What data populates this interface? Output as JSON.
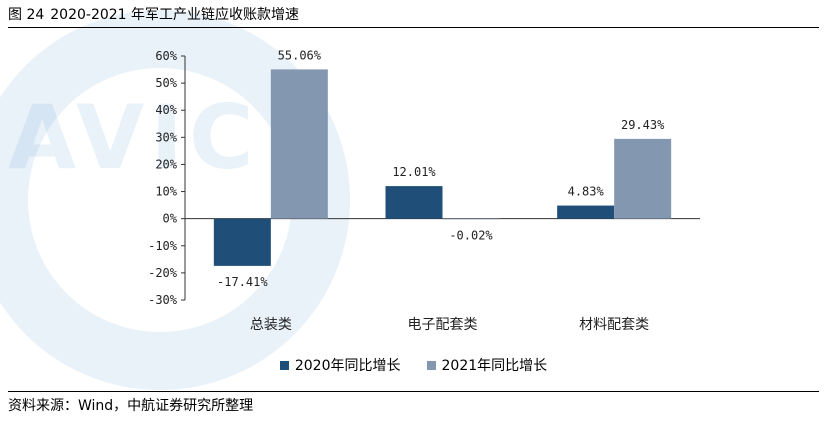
{
  "header": {
    "figure_no": "图 24",
    "title": "2020-2021 年军工产业链应收账款增速"
  },
  "watermark": {
    "text": "AVIC"
  },
  "source": {
    "text": "资料来源：Wind，中航证券研究所整理"
  },
  "colors": {
    "series_2020": "#1f4e79",
    "series_2021": "#8497b0",
    "watermark": "#78aad7"
  },
  "chart_data": {
    "type": "bar",
    "categories": [
      "总装类",
      "电子配套类",
      "材料配套类"
    ],
    "series": [
      {
        "name": "2020年同比增长",
        "values": [
          -17.41,
          12.01,
          4.83
        ],
        "labels": [
          "-17.41%",
          "12.01%",
          "4.83%"
        ]
      },
      {
        "name": "2021年同比增长",
        "values": [
          55.06,
          -0.02,
          29.43
        ],
        "labels": [
          "55.06%",
          "-0.02%",
          "29.43%"
        ]
      }
    ],
    "yticks": [
      "60%",
      "50%",
      "40%",
      "30%",
      "20%",
      "10%",
      "0%",
      "-10%",
      "-20%",
      "-30%"
    ],
    "ylim": [
      -30,
      60
    ],
    "ystep": 10,
    "title": "",
    "xlabel": "",
    "ylabel": "",
    "grid": false,
    "legend": "bottom"
  }
}
